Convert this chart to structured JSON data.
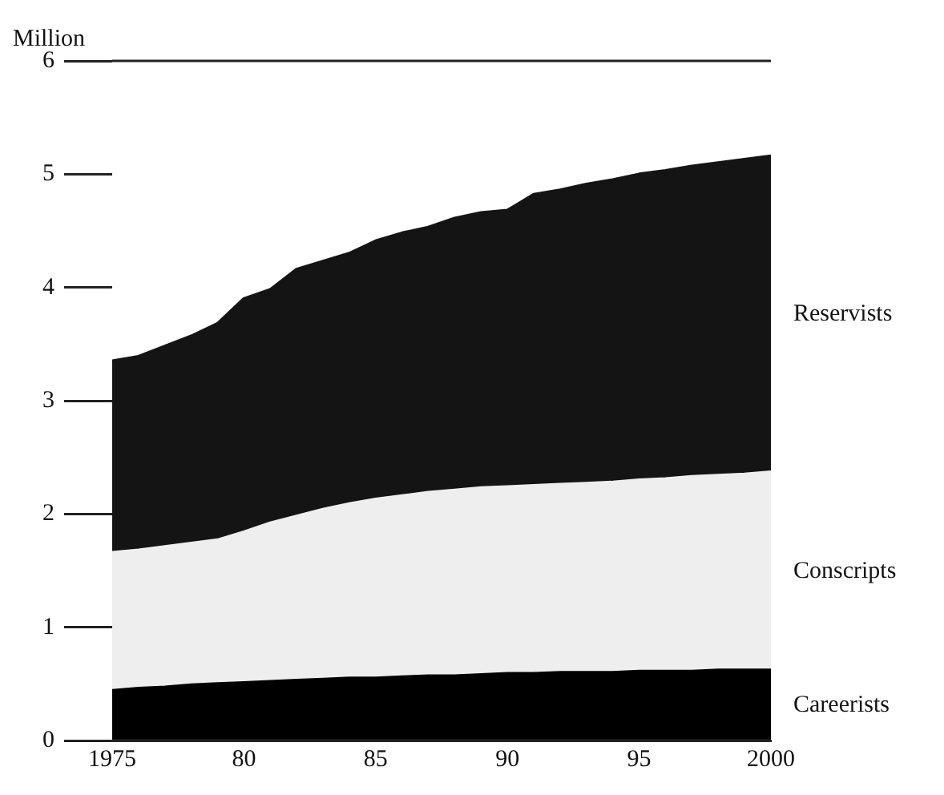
{
  "chart_data": {
    "type": "area",
    "ylabel": "Million",
    "stacked": true,
    "legend": false,
    "grid": false,
    "x": [
      1975,
      1976,
      1977,
      1978,
      1979,
      1980,
      1981,
      1982,
      1983,
      1984,
      1985,
      1986,
      1987,
      1988,
      1989,
      1990,
      1991,
      1992,
      1993,
      1994,
      1995,
      1996,
      1997,
      1998,
      1999,
      2000
    ],
    "xlim": [
      1975,
      2000
    ],
    "xticks": [
      1975,
      {
        "value": 1980,
        "label": "80"
      },
      {
        "value": 1985,
        "label": "85"
      },
      {
        "value": 1990,
        "label": "90"
      },
      {
        "value": 1995,
        "label": "95"
      },
      2000
    ],
    "ylim": [
      0,
      6
    ],
    "yticks": [
      0,
      1,
      2,
      3,
      4,
      5,
      6
    ],
    "series": [
      {
        "name": "Careerists",
        "color": "#000000",
        "values": [
          0.44,
          0.46,
          0.47,
          0.49,
          0.5,
          0.51,
          0.52,
          0.53,
          0.54,
          0.55,
          0.55,
          0.56,
          0.57,
          0.57,
          0.58,
          0.59,
          0.59,
          0.6,
          0.6,
          0.6,
          0.61,
          0.61,
          0.61,
          0.62,
          0.62,
          0.62
        ]
      },
      {
        "name": "Conscripts",
        "color": "#eeeeee",
        "values": [
          1.22,
          1.22,
          1.24,
          1.25,
          1.27,
          1.33,
          1.4,
          1.45,
          1.5,
          1.54,
          1.58,
          1.6,
          1.62,
          1.64,
          1.65,
          1.65,
          1.66,
          1.66,
          1.67,
          1.68,
          1.69,
          1.7,
          1.72,
          1.72,
          1.73,
          1.75
        ]
      },
      {
        "name": "Reservists",
        "color": "#141414",
        "values": [
          1.69,
          1.71,
          1.77,
          1.83,
          1.91,
          2.06,
          2.06,
          2.18,
          2.19,
          2.21,
          2.28,
          2.32,
          2.34,
          2.4,
          2.43,
          2.44,
          2.57,
          2.6,
          2.64,
          2.67,
          2.7,
          2.72,
          2.74,
          2.76,
          2.78,
          2.79
        ]
      }
    ]
  }
}
